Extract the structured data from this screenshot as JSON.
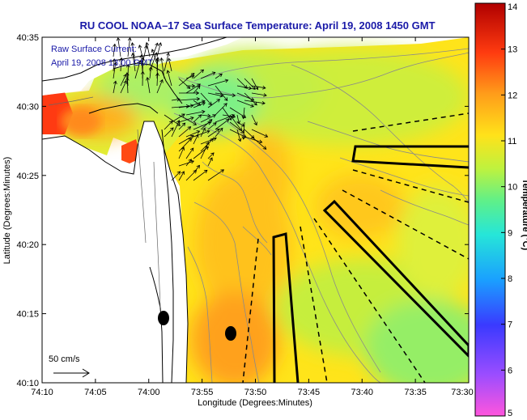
{
  "chart_data": {
    "type": "heatmap",
    "title": "RU COOL  NOAA–17  Sea Surface Temperature:  April 19, 2008 1450 GMT",
    "xlabel": "Longitude (Degrees:Minutes)",
    "ylabel": "Latitude (Degrees:Minutes)",
    "x_range_minutes_west": [
      -250,
      -210
    ],
    "y_range_minutes_north": [
      2410,
      2435
    ],
    "x_ticks": [
      "74:10",
      "74:05",
      "74:00",
      "73:55",
      "73:50",
      "73:45",
      "73:40",
      "73:35",
      "73:30"
    ],
    "y_ticks": [
      "40:35",
      "40:30",
      "40:25",
      "40:20",
      "40:15",
      "40:10"
    ],
    "colorbar": {
      "label": "Temperature (°C)",
      "min": 5,
      "max": 14,
      "ticks": [
        "14",
        "13",
        "12",
        "11",
        "10",
        "9",
        "8",
        "7",
        "6",
        "5"
      ],
      "colors": [
        "#ff55dd",
        "#9b4dff",
        "#3a3aff",
        "#1aa0ff",
        "#26e6d8",
        "#5ef08a",
        "#bff23e",
        "#ffe21a",
        "#ff9d1a",
        "#ff3b10",
        "#b00000"
      ]
    },
    "annotations": {
      "current_label": "Raw Surface Current:",
      "current_time": "April 19, 2008 13:00 GMT",
      "scale_label": "50 cm/s"
    }
  },
  "colors": {
    "title": "#1a1aa8",
    "land": "#ffffff",
    "coast": "#000000",
    "contour": "#8a8a8a"
  }
}
